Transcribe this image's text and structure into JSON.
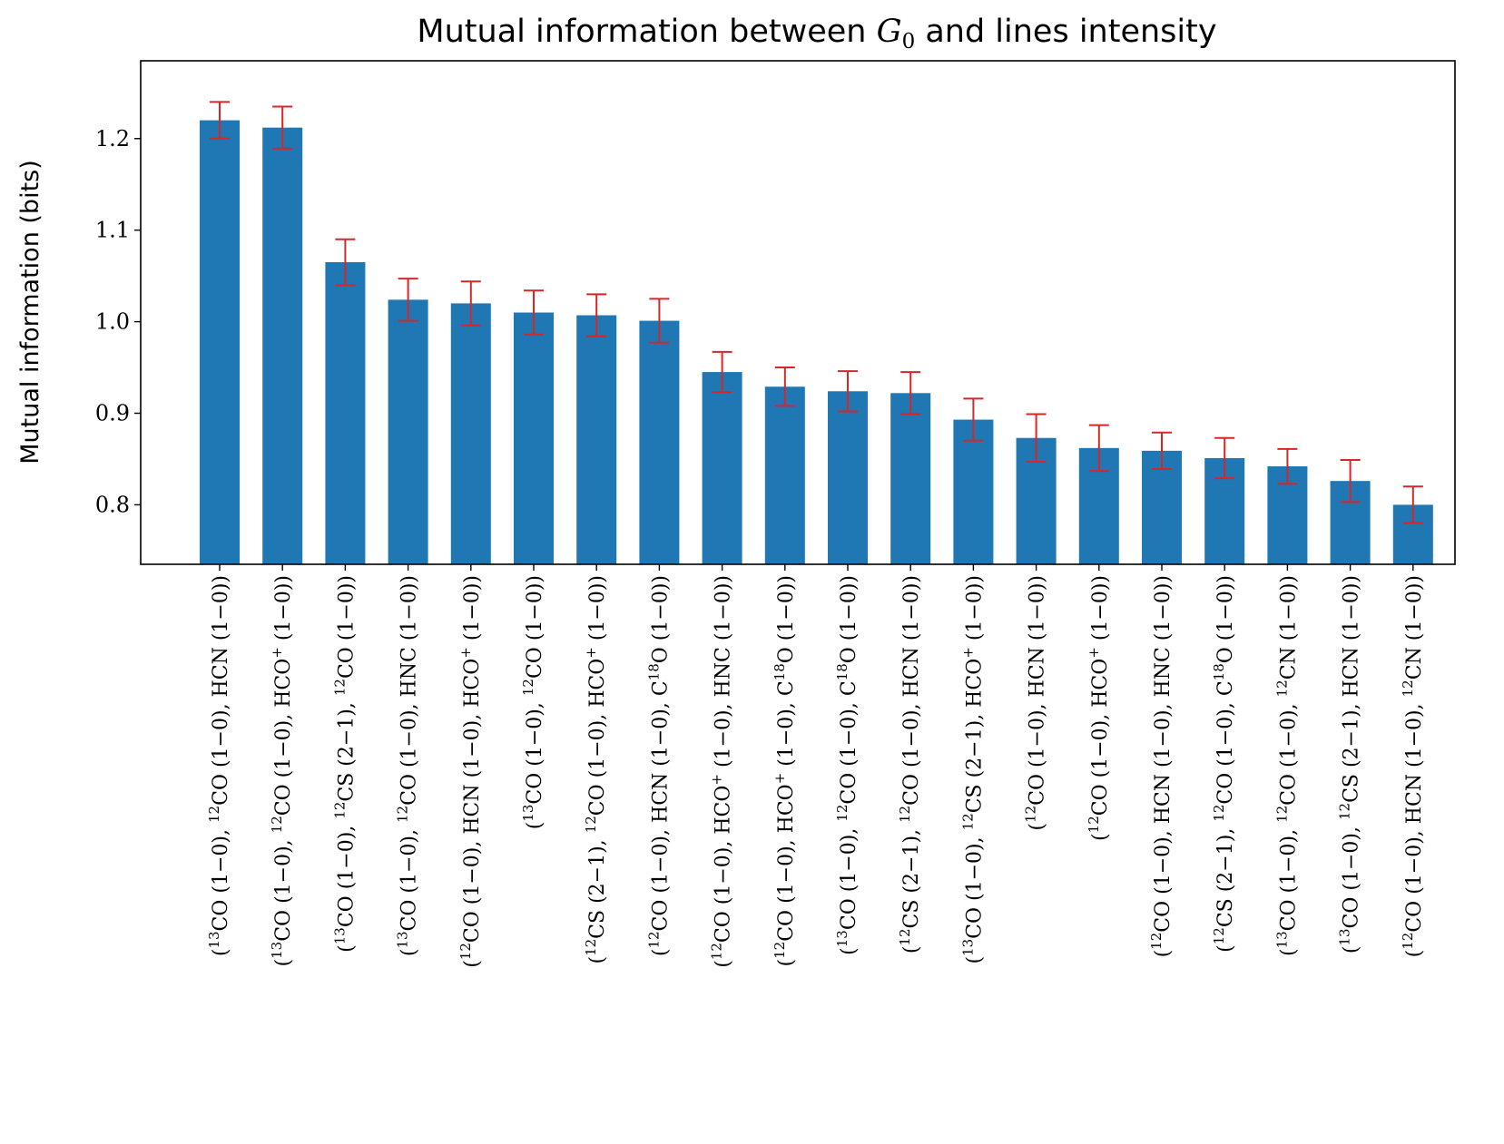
{
  "chart_data": {
    "type": "bar",
    "title": "Mutual information between G0 and lines intensity",
    "title_parts": {
      "pre": "Mutual information between ",
      "var": "G",
      "sub": "0",
      "post": " and lines intensity"
    },
    "xlabel": "",
    "ylabel": "Mutual information (bits)",
    "ylim": [
      0.735,
      1.285
    ],
    "yticks": [
      0.8,
      0.9,
      1.0,
      1.1,
      1.2
    ],
    "ytick_labels": [
      "0.8",
      "0.9",
      "1.0",
      "1.1",
      "1.2"
    ],
    "bar_color": "#1f77b4",
    "error_color": "#d62728",
    "categories": [
      "(13CO (1−0), 12CO (1−0), HCN (1−0))",
      "(13CO (1−0), 12CO (1−0), HCO+ (1−0))",
      "(13CO (1−0), 12CS (2−1), 12CO (1−0))",
      "(13CO (1−0), 12CO (1−0), HNC (1−0))",
      "(12CO (1−0), HCN (1−0), HCO+ (1−0))",
      "(13CO (1−0), 12CO (1−0))",
      "(12CS (2−1), 12CO (1−0), HCO+ (1−0))",
      "(12CO (1−0), HCN (1−0), C18O (1−0))",
      "(12CO (1−0), HCO+ (1−0), HNC (1−0))",
      "(12CO (1−0), HCO+ (1−0), C18O (1−0))",
      "(13CO (1−0), 12CO (1−0), C18O (1−0))",
      "(12CS (2−1), 12CO (1−0), HCN (1−0))",
      "(13CO (1−0), 12CS (2−1), HCO+ (1−0))",
      "(12CO (1−0), HCN (1−0))",
      "(12CO (1−0), HCO+ (1−0))",
      "(12CO (1−0), HCN (1−0), HNC (1−0))",
      "(12CS (2−1), 12CO (1−0), C18O (1−0))",
      "(13CO (1−0), 12CO (1−0), 12CN (1−0))",
      "(13CO (1−0), 12CS (2−1), HCN (1−0))",
      "(12CO (1−0), HCN (1−0), 12CN (1−0))"
    ],
    "values": [
      1.22,
      1.212,
      1.065,
      1.024,
      1.02,
      1.01,
      1.007,
      1.001,
      0.945,
      0.929,
      0.924,
      0.922,
      0.893,
      0.873,
      0.862,
      0.859,
      0.851,
      0.842,
      0.826,
      0.8
    ],
    "errors": [
      0.02,
      0.023,
      0.025,
      0.023,
      0.024,
      0.024,
      0.023,
      0.024,
      0.022,
      0.021,
      0.022,
      0.023,
      0.023,
      0.026,
      0.025,
      0.02,
      0.022,
      0.019,
      0.023,
      0.02
    ]
  }
}
